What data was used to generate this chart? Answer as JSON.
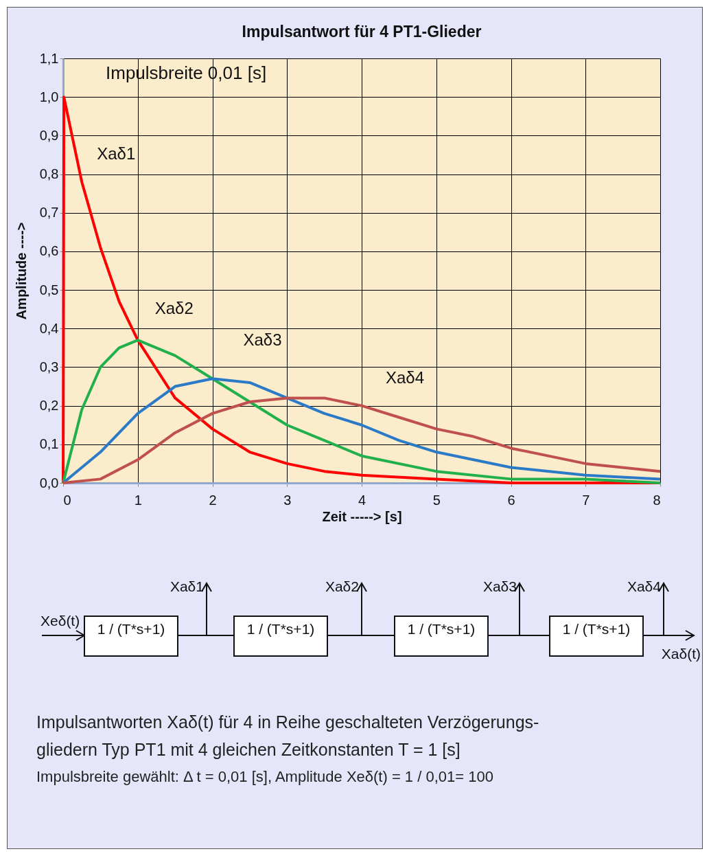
{
  "chart_data": {
    "type": "line",
    "title": "Impulsantwort  für 4  PT1-Glieder",
    "xlabel": "Zeit -----> [s]",
    "ylabel": "Amplitude ---->",
    "xlim": [
      0,
      8
    ],
    "xticks": [
      0,
      1,
      2,
      3,
      4,
      5,
      6,
      7,
      8
    ],
    "ylim": [
      0,
      1.1
    ],
    "yticks": [
      {
        "value": 0,
        "label": "0,0"
      },
      {
        "value": 0.1,
        "label": "0,1"
      },
      {
        "value": 0.2,
        "label": "0,2"
      },
      {
        "value": 0.3,
        "label": "0,3"
      },
      {
        "value": 0.4,
        "label": "0,4"
      },
      {
        "value": 0.5,
        "label": "0,5"
      },
      {
        "value": 0.6,
        "label": "0,6"
      },
      {
        "value": 0.7,
        "label": "0,7"
      },
      {
        "value": 0.8,
        "label": "0,8"
      },
      {
        "value": 0.9,
        "label": "0,9"
      },
      {
        "value": 1.0,
        "label": "1,0"
      },
      {
        "value": 1.1,
        "label": "1,1"
      }
    ],
    "grid": true,
    "legend": false,
    "marker": "none",
    "line_style": "solid",
    "series": [
      {
        "name": "Xaδ1",
        "color": "#ff0000",
        "x": [
          0,
          0.01,
          0.25,
          0.5,
          0.75,
          1,
          1.5,
          2,
          2.5,
          3,
          3.5,
          4,
          5,
          6,
          7,
          8
        ],
        "values": [
          0,
          1.0,
          0.78,
          0.61,
          0.47,
          0.37,
          0.22,
          0.14,
          0.08,
          0.05,
          0.03,
          0.02,
          0.01,
          0,
          0,
          0
        ]
      },
      {
        "name": "Xaδ2",
        "color": "#22b04c",
        "x": [
          0,
          0.25,
          0.5,
          0.75,
          1,
          1.5,
          2,
          2.5,
          3,
          3.5,
          4,
          5,
          6,
          7,
          8
        ],
        "values": [
          0,
          0.19,
          0.3,
          0.35,
          0.37,
          0.33,
          0.27,
          0.21,
          0.15,
          0.11,
          0.07,
          0.03,
          0.01,
          0.01,
          0
        ]
      },
      {
        "name": "Xaδ3",
        "color": "#2a7ac8",
        "x": [
          0,
          0.5,
          1,
          1.5,
          2,
          2.5,
          3,
          3.5,
          4,
          4.5,
          5,
          6,
          7,
          8
        ],
        "values": [
          0,
          0.08,
          0.18,
          0.25,
          0.27,
          0.26,
          0.22,
          0.18,
          0.15,
          0.11,
          0.08,
          0.04,
          0.02,
          0.01
        ]
      },
      {
        "name": "Xaδ4",
        "color": "#c0504d",
        "x": [
          0,
          0.5,
          1,
          1.5,
          2,
          2.5,
          3,
          3.5,
          4,
          4.5,
          5,
          5.5,
          6,
          7,
          8
        ],
        "values": [
          0,
          0.01,
          0.06,
          0.13,
          0.18,
          0.21,
          0.22,
          0.22,
          0.2,
          0.17,
          0.14,
          0.12,
          0.09,
          0.05,
          0.03
        ]
      }
    ],
    "annotations": [
      "Impulsbreite  0,01  [s]",
      "Xeδ(t)",
      "1 / (T*s+1)",
      "1 / (T*s+1)",
      "1 / (T*s+1)",
      "1 / (T*s+1)",
      "Xaδ1",
      "Xaδ2",
      "Xaδ3",
      "Xaδ4",
      "Xaδ(t)",
      "Impulsantworten Xaδ(t)  für 4 in Reihe geschalteten Verzögerungs-",
      "gliedern Typ PT1 mit 4 gleichen Zeitkonstanten  T = 1 [s]",
      "Impulsbreite gewählt: Δ t = 0,01 [s],   Amplitude Xeδ(t) = 1 / 0,01= 100"
    ]
  }
}
